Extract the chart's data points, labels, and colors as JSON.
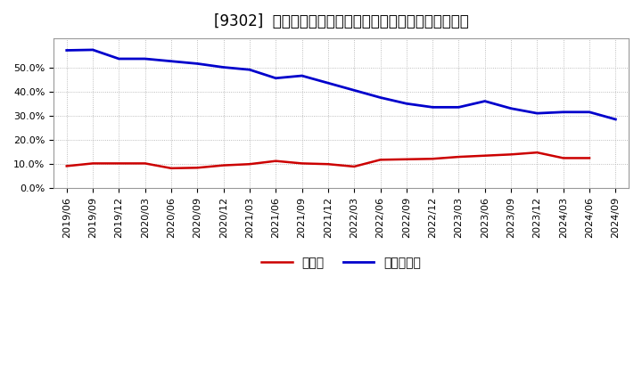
{
  "title": "[9302]  現預金、有利子負債の総資産に対する比率の推移",
  "x_labels": [
    "2019/06",
    "2019/09",
    "2019/12",
    "2020/03",
    "2020/06",
    "2020/09",
    "2020/12",
    "2021/03",
    "2021/06",
    "2021/09",
    "2021/12",
    "2022/03",
    "2022/06",
    "2022/09",
    "2022/12",
    "2023/03",
    "2023/06",
    "2023/09",
    "2023/12",
    "2024/03",
    "2024/06",
    "2024/09"
  ],
  "cash": [
    0.092,
    0.103,
    0.103,
    0.103,
    0.083,
    0.085,
    0.095,
    0.1,
    0.113,
    0.103,
    0.1,
    0.09,
    0.118,
    0.12,
    0.122,
    0.13,
    0.135,
    0.14,
    0.148,
    0.125,
    0.125,
    null
  ],
  "debt": [
    0.57,
    0.572,
    0.535,
    0.535,
    0.525,
    0.515,
    0.5,
    0.49,
    0.455,
    0.465,
    0.435,
    0.405,
    0.375,
    0.35,
    0.335,
    0.335,
    0.36,
    0.33,
    0.31,
    0.315,
    0.315,
    0.285
  ],
  "cash_color": "#cc0000",
  "debt_color": "#0000cc",
  "bg_color": "#ffffff",
  "plot_bg_color": "#ffffff",
  "grid_color": "#aaaaaa",
  "legend_cash": "現預金",
  "legend_debt": "有利子負債",
  "ylim": [
    0.0,
    0.62
  ],
  "yticks": [
    0.0,
    0.1,
    0.2,
    0.3,
    0.4,
    0.5
  ],
  "title_fontsize": 12,
  "axis_fontsize": 8,
  "legend_fontsize": 10
}
